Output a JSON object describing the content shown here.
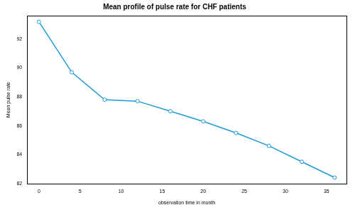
{
  "chart_data": {
    "type": "line",
    "title": "Mean profile of pulse rate for CHF patients",
    "x_label": "observation time in month",
    "y_label": "Mean pulse rate",
    "x": [
      0,
      4,
      8,
      12,
      16,
      20,
      24,
      28,
      32,
      36
    ],
    "values": [
      93.2,
      89.7,
      87.8,
      87.7,
      87.0,
      86.3,
      85.5,
      84.6,
      83.5,
      82.4
    ],
    "color": "#1f9ad6",
    "marker": "open_circle",
    "line_style": "solid",
    "xlim": [
      -1.44,
      37.44
    ],
    "xticks": [
      0,
      5,
      10,
      15,
      20,
      25,
      30,
      35
    ],
    "ylim": [
      81.97,
      93.63
    ],
    "yticks": [
      82,
      84,
      86,
      88,
      90,
      92
    ],
    "grid": false
  }
}
